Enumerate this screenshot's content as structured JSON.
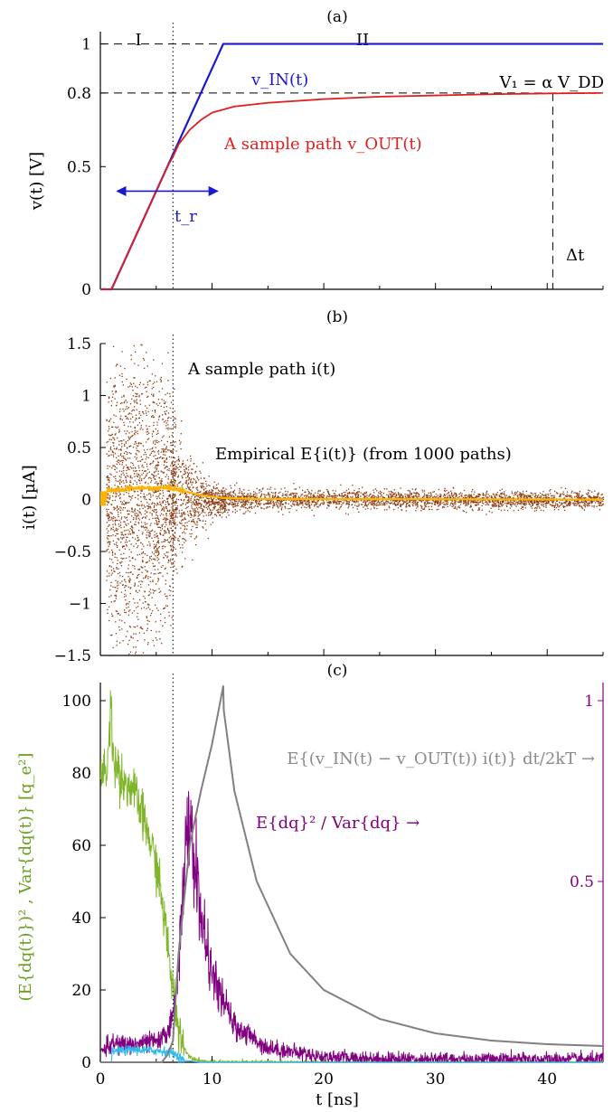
{
  "chart_data": [
    {
      "panel": "(a)",
      "type": "line",
      "ylabel": "v(t) [V]",
      "xlim": [
        0,
        45
      ],
      "ylim": [
        0,
        1.05
      ],
      "yticks": [
        {
          "value": 0,
          "label": "0"
        },
        {
          "value": 0.5,
          "label": "0.5"
        },
        {
          "value": 0.8,
          "label": "0.8"
        },
        {
          "value": 1,
          "label": "1"
        }
      ],
      "regions": [
        {
          "label": "I",
          "x": 3.2
        },
        {
          "label": "II",
          "x": 23
        }
      ],
      "boundary_x": 6.5,
      "reference_lines": [
        {
          "y": 1,
          "style": "dashed"
        },
        {
          "y": 0.8,
          "style": "dashed",
          "label": "V₁ = α V_DD"
        }
      ],
      "series": [
        {
          "name": "v_IN(t)",
          "color": "#1a1acc",
          "x": [
            0,
            1,
            11,
            45
          ],
          "y": [
            0,
            0,
            1,
            1
          ]
        },
        {
          "name": "A sample path v_OUT(t)",
          "color": "#e02020",
          "x": [
            0,
            1,
            3,
            5,
            6,
            6.5,
            7,
            8,
            9,
            10,
            12,
            15,
            20,
            25,
            30,
            35,
            40,
            45
          ],
          "y": [
            0,
            0,
            0.2,
            0.4,
            0.5,
            0.54,
            0.59,
            0.65,
            0.69,
            0.72,
            0.745,
            0.76,
            0.775,
            0.785,
            0.79,
            0.795,
            0.798,
            0.8
          ]
        }
      ],
      "annotations": {
        "vin_label": "v_IN(t)",
        "vout_label": "A sample path v_OUT(t)",
        "v1_label": "V₁ = α V_DD",
        "tr_label": "t_r",
        "tr_arrow": [
          1.5,
          10.5
        ],
        "tr_y": 0.4,
        "dt_label": "Δt",
        "dt_x": 40.5
      }
    },
    {
      "panel": "(b)",
      "type": "scatter",
      "ylabel": "i(t) [µA]",
      "xlim": [
        0,
        45
      ],
      "ylim": [
        -1.5,
        1.5
      ],
      "yticks": [
        {
          "value": -1.5,
          "label": "−1.5"
        },
        {
          "value": -1,
          "label": "−1"
        },
        {
          "value": -0.5,
          "label": "−0.5"
        },
        {
          "value": 0,
          "label": "0"
        },
        {
          "value": 0.5,
          "label": "0.5"
        },
        {
          "value": 1,
          "label": "1"
        },
        {
          "value": 1.5,
          "label": "1.5"
        }
      ],
      "boundary_x": 6.5,
      "series": [
        {
          "name": "A sample path i(t)",
          "color": "#8b3a0f",
          "noise_envelope": {
            "x": [
              0,
              1,
              3,
              6,
              6.5,
              8,
              10,
              15,
              45
            ],
            "sd": [
              0.2,
              0.7,
              0.75,
              0.55,
              0.4,
              0.18,
              0.07,
              0.045,
              0.04
            ]
          }
        },
        {
          "name": "Empirical E{i(t)} (from 1000 paths)",
          "color": "#ffb300",
          "x": [
            0,
            0.5,
            0.6,
            3,
            6,
            6.5,
            7.5,
            9,
            11,
            14,
            45
          ],
          "y": [
            0,
            0,
            0.08,
            0.11,
            0.11,
            0.11,
            0.08,
            0.04,
            0.015,
            0.005,
            0
          ]
        }
      ],
      "annotations": {
        "ipath_label": "A sample path i(t)",
        "mean_label": "Empirical E{i(t)} (from 1000 paths)"
      }
    },
    {
      "panel": "(c)",
      "type": "line",
      "xlabel": "t [ns]",
      "ylabel": "(E{dq(t)})² , Var{dq(t)} [q_e²]",
      "xlim": [
        0,
        45
      ],
      "ylim": [
        0,
        105
      ],
      "ylim_right": [
        0,
        1.05
      ],
      "xticks": [
        0,
        10,
        20,
        30,
        40
      ],
      "yticks": [
        0,
        20,
        40,
        60,
        80,
        100
      ],
      "yticks_right": [
        {
          "value": 0.5,
          "label": "0.5"
        },
        {
          "value": 1,
          "label": "1"
        }
      ],
      "boundary_x": 6.5,
      "series": [
        {
          "name": "(E{dq(t)})²",
          "color": "#33bbee",
          "axis": "left",
          "x": [
            0,
            1,
            1.05,
            3,
            6,
            6.5,
            7.5,
            9,
            45
          ],
          "y": [
            0,
            0,
            3,
            3.5,
            3,
            2.5,
            0.5,
            0,
            0
          ]
        },
        {
          "name": "Var{dq(t)}",
          "color": "#7fb52a",
          "axis": "left",
          "x": [
            0,
            0.5,
            0.8,
            1,
            2,
            3,
            4,
            5,
            5.5,
            6,
            6.5,
            7,
            7.5,
            8,
            9,
            10,
            45
          ],
          "y": [
            80,
            80,
            90,
            86,
            78,
            75,
            66,
            55,
            45,
            33,
            20,
            10,
            4,
            1.5,
            0.4,
            0,
            0
          ]
        },
        {
          "name": "E{dq}² / Var{dq}",
          "color": "#800080",
          "axis": "right",
          "x": [
            0,
            1,
            3,
            5.5,
            6.5,
            7,
            7.5,
            8,
            8.5,
            9,
            10,
            12,
            15,
            20,
            25,
            45
          ],
          "y": [
            0.03,
            0.05,
            0.05,
            0.06,
            0.12,
            0.28,
            0.55,
            0.65,
            0.55,
            0.4,
            0.24,
            0.1,
            0.04,
            0.015,
            0.01,
            0.008
          ]
        },
        {
          "name": "E{(v_IN(t) − v_OUT(t)) i(t)} dt/(2kT)",
          "color": "#808080",
          "axis": "left",
          "x": [
            0,
            5.5,
            6,
            6.5,
            7,
            8,
            9,
            10,
            11,
            11.02,
            12,
            14,
            17,
            20,
            25,
            30,
            35,
            40,
            45
          ],
          "y": [
            0,
            0,
            2,
            6,
            30,
            60,
            75,
            88,
            104,
            98,
            75,
            50,
            30,
            20,
            12,
            8,
            6,
            5,
            4.5
          ]
        }
      ],
      "annotations": {
        "power_label": "E{(v_IN(t) − v_OUT(t)) i(t)} dt/2kT →",
        "ratio_label": "E{dq}² / Var{dq} →"
      }
    }
  ]
}
